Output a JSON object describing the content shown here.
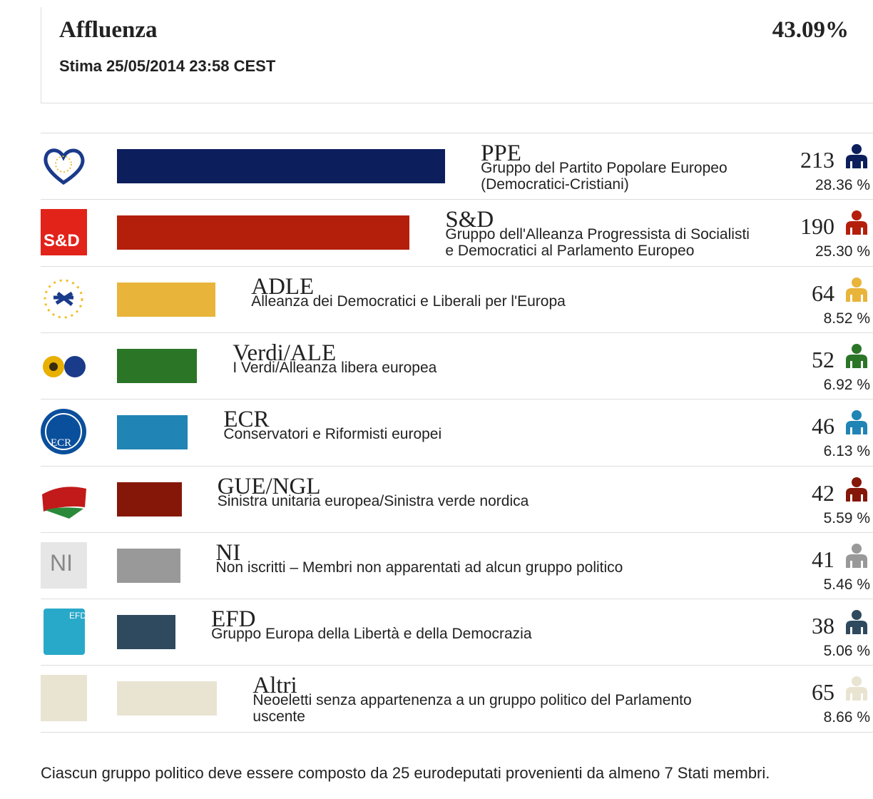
{
  "header": {
    "title": "Affluenza",
    "turnout": "43.09%",
    "estimate": "Stima 25/05/2014 23:58 CEST"
  },
  "groups": [
    {
      "name": "PPE",
      "description": [
        "Gruppo del Partito Popolare Europeo",
        "(Democratici-Cristiani)"
      ],
      "seats": 213,
      "percent": "28.36 %",
      "color": "#0c1e5c"
    },
    {
      "name": "S&D",
      "logo_text": "S&D",
      "description": [
        "Gruppo dell'Alleanza Progressista di Socialisti",
        "e Democratici al Parlamento Europeo"
      ],
      "seats": 190,
      "percent": "25.30 %",
      "color": "#b41f0c"
    },
    {
      "name": "ADLE",
      "description": [
        "Alleanza dei Democratici e Liberali per l'Europa"
      ],
      "seats": 64,
      "percent": "8.52 %",
      "color": "#e8b43a"
    },
    {
      "name": "Verdi/ALE",
      "description": [
        "I Verdi/Alleanza libera europea"
      ],
      "seats": 52,
      "percent": "6.92 %",
      "color": "#2b7527"
    },
    {
      "name": "ECR",
      "logo_text": "ECR",
      "description": [
        "Conservatori e Riformisti europei"
      ],
      "seats": 46,
      "percent": "6.13 %",
      "color": "#2084b4"
    },
    {
      "name": "GUE/NGL",
      "description": [
        "Sinistra unitaria europea/Sinistra verde nordica"
      ],
      "seats": 42,
      "percent": "5.59 %",
      "color": "#851708"
    },
    {
      "name": "NI",
      "logo_text": "NI",
      "description": [
        "Non iscritti – Membri non apparentati ad alcun gruppo politico"
      ],
      "seats": 41,
      "percent": "5.46 %",
      "color": "#999999"
    },
    {
      "name": "EFD",
      "logo_text": "EFD",
      "description": [
        "Gruppo Europa della Libertà e della Democrazia"
      ],
      "seats": 38,
      "percent": "5.06 %",
      "color": "#2f4a5e"
    },
    {
      "name": "Altri",
      "description": [
        "Neoeletti senza appartenenza a un gruppo politico del Parlamento",
        "uscente"
      ],
      "seats": 65,
      "percent": "8.66 %",
      "color": "#e9e3d2"
    }
  ],
  "footer": "Ciascun gruppo politico deve essere composto da 25 eurodeputati provenienti da almeno 7 Stati membri."
}
